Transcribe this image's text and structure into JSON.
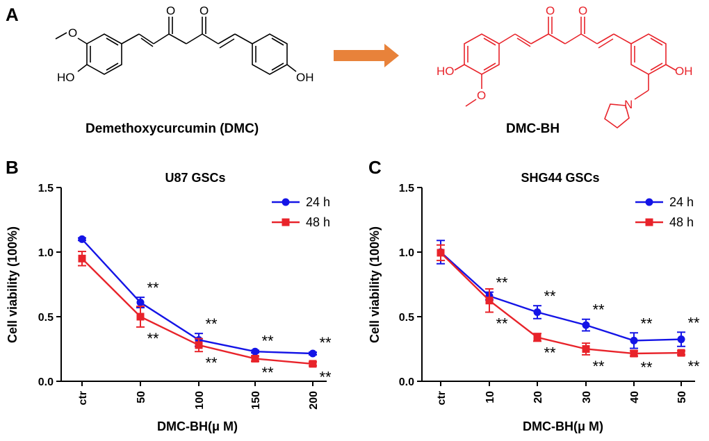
{
  "panel_a": {
    "letter": "A",
    "molecule_left": {
      "name": "Demethoxycurcumin  (DMC)",
      "atoms": {
        "o1": "O",
        "o2": "O",
        "methoxy_o": "O",
        "ho_left": "HO",
        "oh_right": "OH"
      }
    },
    "molecule_right": {
      "name": "DMC-BH",
      "atoms": {
        "o1": "O",
        "o2": "O",
        "ho_left": "HO",
        "methoxy_o": "O",
        "oh_right": "OH",
        "n": "N"
      }
    },
    "colors": {
      "left_structure": "#000000",
      "right_structure": "#e8232a",
      "arrow": "#e8823a"
    }
  },
  "chart_data": [
    {
      "panel_letter": "B",
      "type": "line",
      "title": "U87 GSCs",
      "xlabel": "DMC-BH(μ M)",
      "ylabel": "Cell viability (100%)",
      "categories": [
        "ctr",
        "50",
        "100",
        "150",
        "200"
      ],
      "ylim": [
        0,
        1.5
      ],
      "yticks": [
        "0.0",
        "0.5",
        "1.0",
        "1.5"
      ],
      "grid": false,
      "legend_position": "top-right",
      "series": [
        {
          "name": "24 h",
          "color": "#1414e6",
          "marker": "circle",
          "values": [
            1.1,
            0.61,
            0.32,
            0.23,
            0.215
          ],
          "errors": [
            0.01,
            0.04,
            0.05,
            0.01,
            0.01
          ],
          "significance": [
            "",
            "**",
            "**",
            "**",
            "**"
          ]
        },
        {
          "name": "48 h",
          "color": "#e8232a",
          "marker": "square",
          "values": [
            0.95,
            0.5,
            0.28,
            0.175,
            0.135
          ],
          "errors": [
            0.055,
            0.08,
            0.05,
            0.02,
            0.015
          ],
          "significance": [
            "",
            "**",
            "**",
            "**",
            "**"
          ]
        }
      ]
    },
    {
      "panel_letter": "C",
      "type": "line",
      "title": "SHG44 GSCs",
      "xlabel": "DMC-BH(μ M)",
      "ylabel": "Cell viability (100%)",
      "categories": [
        "ctr",
        "10",
        "20",
        "30",
        "40",
        "50"
      ],
      "ylim": [
        0,
        1.5
      ],
      "yticks": [
        "0.0",
        "0.5",
        "1.0",
        "1.5"
      ],
      "grid": false,
      "legend_position": "top-right",
      "series": [
        {
          "name": "24 h",
          "color": "#1414e6",
          "marker": "circle",
          "values": [
            1.0,
            0.66,
            0.535,
            0.435,
            0.315,
            0.325
          ],
          "errors": [
            0.09,
            0.03,
            0.05,
            0.045,
            0.06,
            0.055
          ],
          "significance": [
            "",
            "**",
            "**",
            "**",
            "**",
            "**"
          ]
        },
        {
          "name": "48 h",
          "color": "#e8232a",
          "marker": "square",
          "values": [
            0.995,
            0.625,
            0.34,
            0.25,
            0.215,
            0.22
          ],
          "errors": [
            0.06,
            0.09,
            0.03,
            0.045,
            0.02,
            0.015
          ],
          "significance": [
            "",
            "**",
            "**",
            "**",
            "**",
            "**"
          ]
        }
      ]
    }
  ]
}
